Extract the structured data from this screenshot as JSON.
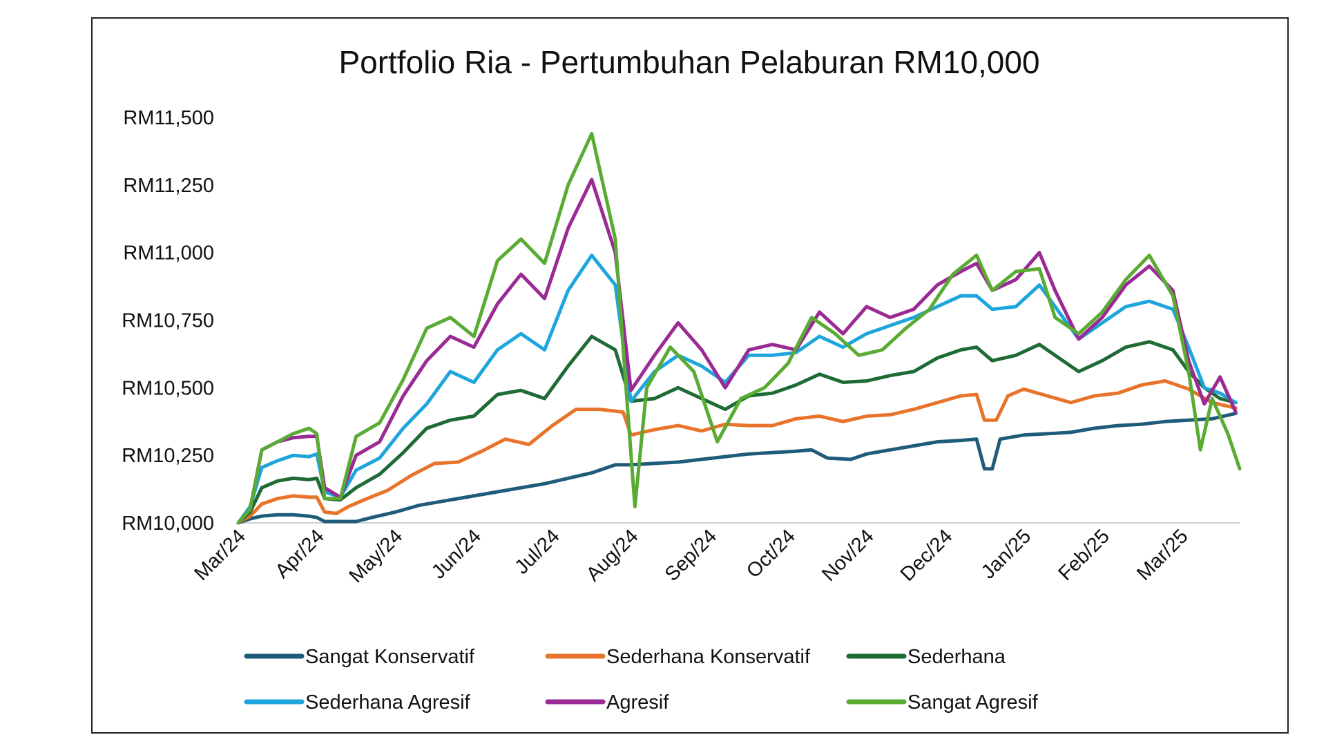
{
  "chart_data": {
    "type": "line",
    "title": "Portfolio Ria - Pertumbuhan Pelaburan RM10,000",
    "xlabel": "",
    "ylabel": "",
    "x_ticks": [
      "Mar/24",
      "Apr/24",
      "May/24",
      "Jun/24",
      "Jul/24",
      "Aug/24",
      "Sep/24",
      "Oct/24",
      "Nov/24",
      "Dec/24",
      "Jan/25",
      "Feb/25",
      "Mar/25"
    ],
    "y_ticks": [
      "RM10,000",
      "RM10,250",
      "RM10,500",
      "RM10,750",
      "RM11,000",
      "RM11,250",
      "RM11,500"
    ],
    "ylim": [
      10000,
      11500
    ],
    "grid": false,
    "legend_position": "bottom",
    "series": [
      {
        "name": "Sangat Konservatif",
        "color": "#1f5b7a",
        "points": [
          [
            0,
            10000
          ],
          [
            0.15,
            10015
          ],
          [
            0.3,
            10025
          ],
          [
            0.5,
            10030
          ],
          [
            0.7,
            10030
          ],
          [
            0.9,
            10025
          ],
          [
            1.0,
            10020
          ],
          [
            1.1,
            10005
          ],
          [
            1.3,
            10005
          ],
          [
            1.5,
            10005
          ],
          [
            1.7,
            10020
          ],
          [
            2.0,
            10040
          ],
          [
            2.3,
            10065
          ],
          [
            2.6,
            10080
          ],
          [
            3.0,
            10100
          ],
          [
            3.3,
            10115
          ],
          [
            3.6,
            10130
          ],
          [
            3.9,
            10145
          ],
          [
            4.2,
            10165
          ],
          [
            4.5,
            10185
          ],
          [
            4.8,
            10215
          ],
          [
            5.0,
            10215
          ],
          [
            5.3,
            10220
          ],
          [
            5.6,
            10225
          ],
          [
            5.9,
            10235
          ],
          [
            6.2,
            10245
          ],
          [
            6.5,
            10255
          ],
          [
            6.8,
            10260
          ],
          [
            7.1,
            10265
          ],
          [
            7.3,
            10270
          ],
          [
            7.5,
            10240
          ],
          [
            7.8,
            10235
          ],
          [
            8.0,
            10255
          ],
          [
            8.3,
            10270
          ],
          [
            8.6,
            10285
          ],
          [
            8.9,
            10300
          ],
          [
            9.2,
            10305
          ],
          [
            9.4,
            10310
          ],
          [
            9.5,
            10200
          ],
          [
            9.6,
            10200
          ],
          [
            9.7,
            10310
          ],
          [
            10.0,
            10325
          ],
          [
            10.3,
            10330
          ],
          [
            10.6,
            10335
          ],
          [
            10.9,
            10350
          ],
          [
            11.2,
            10360
          ],
          [
            11.5,
            10365
          ],
          [
            11.8,
            10375
          ],
          [
            12.1,
            10380
          ],
          [
            12.4,
            10385
          ],
          [
            12.7,
            10405
          ]
        ]
      },
      {
        "name": "Sederhana Konservatif",
        "color": "#e8732a",
        "points": [
          [
            0,
            10000
          ],
          [
            0.15,
            10025
          ],
          [
            0.3,
            10070
          ],
          [
            0.5,
            10090
          ],
          [
            0.7,
            10100
          ],
          [
            0.9,
            10095
          ],
          [
            1.0,
            10095
          ],
          [
            1.1,
            10040
          ],
          [
            1.25,
            10035
          ],
          [
            1.4,
            10060
          ],
          [
            1.6,
            10085
          ],
          [
            1.9,
            10120
          ],
          [
            2.2,
            10175
          ],
          [
            2.5,
            10220
          ],
          [
            2.8,
            10225
          ],
          [
            3.1,
            10265
          ],
          [
            3.4,
            10310
          ],
          [
            3.7,
            10290
          ],
          [
            4.0,
            10360
          ],
          [
            4.3,
            10420
          ],
          [
            4.6,
            10420
          ],
          [
            4.9,
            10410
          ],
          [
            5.0,
            10325
          ],
          [
            5.3,
            10345
          ],
          [
            5.6,
            10360
          ],
          [
            5.9,
            10340
          ],
          [
            6.2,
            10365
          ],
          [
            6.5,
            10360
          ],
          [
            6.8,
            10360
          ],
          [
            7.1,
            10385
          ],
          [
            7.4,
            10395
          ],
          [
            7.7,
            10375
          ],
          [
            8.0,
            10395
          ],
          [
            8.3,
            10400
          ],
          [
            8.6,
            10420
          ],
          [
            8.9,
            10445
          ],
          [
            9.2,
            10470
          ],
          [
            9.4,
            10475
          ],
          [
            9.5,
            10380
          ],
          [
            9.65,
            10380
          ],
          [
            9.8,
            10470
          ],
          [
            10.0,
            10495
          ],
          [
            10.3,
            10470
          ],
          [
            10.6,
            10445
          ],
          [
            10.9,
            10470
          ],
          [
            11.2,
            10480
          ],
          [
            11.5,
            10510
          ],
          [
            11.8,
            10525
          ],
          [
            12.1,
            10495
          ],
          [
            12.4,
            10445
          ],
          [
            12.7,
            10425
          ]
        ]
      },
      {
        "name": "Sederhana",
        "color": "#1e6b35",
        "points": [
          [
            0,
            10000
          ],
          [
            0.15,
            10040
          ],
          [
            0.3,
            10130
          ],
          [
            0.5,
            10155
          ],
          [
            0.7,
            10165
          ],
          [
            0.9,
            10160
          ],
          [
            1.0,
            10165
          ],
          [
            1.1,
            10090
          ],
          [
            1.3,
            10085
          ],
          [
            1.5,
            10130
          ],
          [
            1.8,
            10180
          ],
          [
            2.1,
            10260
          ],
          [
            2.4,
            10350
          ],
          [
            2.7,
            10380
          ],
          [
            3.0,
            10395
          ],
          [
            3.3,
            10475
          ],
          [
            3.6,
            10490
          ],
          [
            3.9,
            10460
          ],
          [
            4.2,
            10580
          ],
          [
            4.5,
            10690
          ],
          [
            4.8,
            10640
          ],
          [
            5.0,
            10450
          ],
          [
            5.3,
            10460
          ],
          [
            5.6,
            10500
          ],
          [
            5.9,
            10460
          ],
          [
            6.2,
            10420
          ],
          [
            6.5,
            10470
          ],
          [
            6.8,
            10480
          ],
          [
            7.1,
            10510
          ],
          [
            7.4,
            10550
          ],
          [
            7.7,
            10520
          ],
          [
            8.0,
            10525
          ],
          [
            8.3,
            10545
          ],
          [
            8.6,
            10560
          ],
          [
            8.9,
            10610
          ],
          [
            9.2,
            10640
          ],
          [
            9.4,
            10650
          ],
          [
            9.6,
            10600
          ],
          [
            9.9,
            10620
          ],
          [
            10.2,
            10660
          ],
          [
            10.4,
            10620
          ],
          [
            10.7,
            10560
          ],
          [
            11.0,
            10600
          ],
          [
            11.3,
            10650
          ],
          [
            11.6,
            10670
          ],
          [
            11.9,
            10640
          ],
          [
            12.1,
            10560
          ],
          [
            12.3,
            10500
          ],
          [
            12.5,
            10460
          ],
          [
            12.7,
            10445
          ]
        ]
      },
      {
        "name": "Sederhana Agresif",
        "color": "#1ea6dc",
        "points": [
          [
            0,
            10000
          ],
          [
            0.15,
            10060
          ],
          [
            0.3,
            10205
          ],
          [
            0.5,
            10230
          ],
          [
            0.7,
            10250
          ],
          [
            0.9,
            10245
          ],
          [
            1.0,
            10255
          ],
          [
            1.1,
            10115
          ],
          [
            1.3,
            10095
          ],
          [
            1.5,
            10195
          ],
          [
            1.8,
            10240
          ],
          [
            2.1,
            10350
          ],
          [
            2.4,
            10440
          ],
          [
            2.7,
            10560
          ],
          [
            3.0,
            10520
          ],
          [
            3.3,
            10640
          ],
          [
            3.6,
            10700
          ],
          [
            3.9,
            10640
          ],
          [
            4.2,
            10860
          ],
          [
            4.5,
            10990
          ],
          [
            4.8,
            10880
          ],
          [
            5.0,
            10450
          ],
          [
            5.3,
            10560
          ],
          [
            5.6,
            10620
          ],
          [
            5.9,
            10580
          ],
          [
            6.2,
            10520
          ],
          [
            6.5,
            10620
          ],
          [
            6.8,
            10620
          ],
          [
            7.1,
            10630
          ],
          [
            7.4,
            10690
          ],
          [
            7.7,
            10650
          ],
          [
            8.0,
            10700
          ],
          [
            8.3,
            10730
          ],
          [
            8.6,
            10760
          ],
          [
            8.9,
            10800
          ],
          [
            9.2,
            10840
          ],
          [
            9.4,
            10840
          ],
          [
            9.6,
            10790
          ],
          [
            9.9,
            10800
          ],
          [
            10.2,
            10880
          ],
          [
            10.4,
            10800
          ],
          [
            10.7,
            10680
          ],
          [
            11.0,
            10740
          ],
          [
            11.3,
            10800
          ],
          [
            11.6,
            10820
          ],
          [
            11.9,
            10790
          ],
          [
            12.1,
            10650
          ],
          [
            12.3,
            10500
          ],
          [
            12.5,
            10480
          ],
          [
            12.7,
            10445
          ]
        ]
      },
      {
        "name": "Agresif",
        "color": "#9a2a94",
        "points": [
          [
            0,
            10000
          ],
          [
            0.15,
            10050
          ],
          [
            0.3,
            10270
          ],
          [
            0.5,
            10300
          ],
          [
            0.7,
            10315
          ],
          [
            0.9,
            10320
          ],
          [
            1.0,
            10320
          ],
          [
            1.1,
            10130
          ],
          [
            1.3,
            10095
          ],
          [
            1.5,
            10250
          ],
          [
            1.8,
            10300
          ],
          [
            2.1,
            10470
          ],
          [
            2.4,
            10600
          ],
          [
            2.7,
            10690
          ],
          [
            3.0,
            10650
          ],
          [
            3.3,
            10810
          ],
          [
            3.6,
            10920
          ],
          [
            3.9,
            10830
          ],
          [
            4.2,
            11090
          ],
          [
            4.5,
            11270
          ],
          [
            4.8,
            11000
          ],
          [
            5.0,
            10490
          ],
          [
            5.3,
            10620
          ],
          [
            5.6,
            10740
          ],
          [
            5.9,
            10640
          ],
          [
            6.2,
            10500
          ],
          [
            6.5,
            10640
          ],
          [
            6.8,
            10660
          ],
          [
            7.1,
            10640
          ],
          [
            7.4,
            10780
          ],
          [
            7.7,
            10700
          ],
          [
            8.0,
            10800
          ],
          [
            8.3,
            10760
          ],
          [
            8.6,
            10790
          ],
          [
            8.9,
            10880
          ],
          [
            9.2,
            10930
          ],
          [
            9.4,
            10960
          ],
          [
            9.6,
            10860
          ],
          [
            9.9,
            10900
          ],
          [
            10.2,
            11000
          ],
          [
            10.4,
            10860
          ],
          [
            10.7,
            10680
          ],
          [
            11.0,
            10760
          ],
          [
            11.3,
            10880
          ],
          [
            11.6,
            10950
          ],
          [
            11.9,
            10860
          ],
          [
            12.1,
            10600
          ],
          [
            12.3,
            10440
          ],
          [
            12.5,
            10540
          ],
          [
            12.7,
            10410
          ]
        ]
      },
      {
        "name": "Sangat Agresif",
        "color": "#5aab33",
        "points": [
          [
            0,
            10000
          ],
          [
            0.15,
            10050
          ],
          [
            0.3,
            10270
          ],
          [
            0.5,
            10300
          ],
          [
            0.7,
            10330
          ],
          [
            0.9,
            10350
          ],
          [
            1.0,
            10330
          ],
          [
            1.1,
            10090
          ],
          [
            1.3,
            10090
          ],
          [
            1.5,
            10320
          ],
          [
            1.8,
            10370
          ],
          [
            2.1,
            10530
          ],
          [
            2.4,
            10720
          ],
          [
            2.7,
            10760
          ],
          [
            3.0,
            10690
          ],
          [
            3.3,
            10970
          ],
          [
            3.6,
            11050
          ],
          [
            3.9,
            10960
          ],
          [
            4.2,
            11250
          ],
          [
            4.5,
            11440
          ],
          [
            4.8,
            11050
          ],
          [
            4.95,
            10450
          ],
          [
            5.05,
            10060
          ],
          [
            5.2,
            10500
          ],
          [
            5.5,
            10650
          ],
          [
            5.8,
            10560
          ],
          [
            6.1,
            10300
          ],
          [
            6.4,
            10460
          ],
          [
            6.7,
            10500
          ],
          [
            7.0,
            10590
          ],
          [
            7.3,
            10760
          ],
          [
            7.6,
            10700
          ],
          [
            7.9,
            10620
          ],
          [
            8.2,
            10640
          ],
          [
            8.5,
            10720
          ],
          [
            8.8,
            10790
          ],
          [
            9.1,
            10920
          ],
          [
            9.4,
            10990
          ],
          [
            9.6,
            10860
          ],
          [
            9.9,
            10930
          ],
          [
            10.2,
            10940
          ],
          [
            10.4,
            10760
          ],
          [
            10.7,
            10700
          ],
          [
            11.0,
            10780
          ],
          [
            11.3,
            10900
          ],
          [
            11.6,
            10990
          ],
          [
            11.9,
            10840
          ],
          [
            12.1,
            10560
          ],
          [
            12.25,
            10270
          ],
          [
            12.4,
            10460
          ],
          [
            12.6,
            10330
          ],
          [
            12.75,
            10200
          ]
        ]
      }
    ]
  }
}
